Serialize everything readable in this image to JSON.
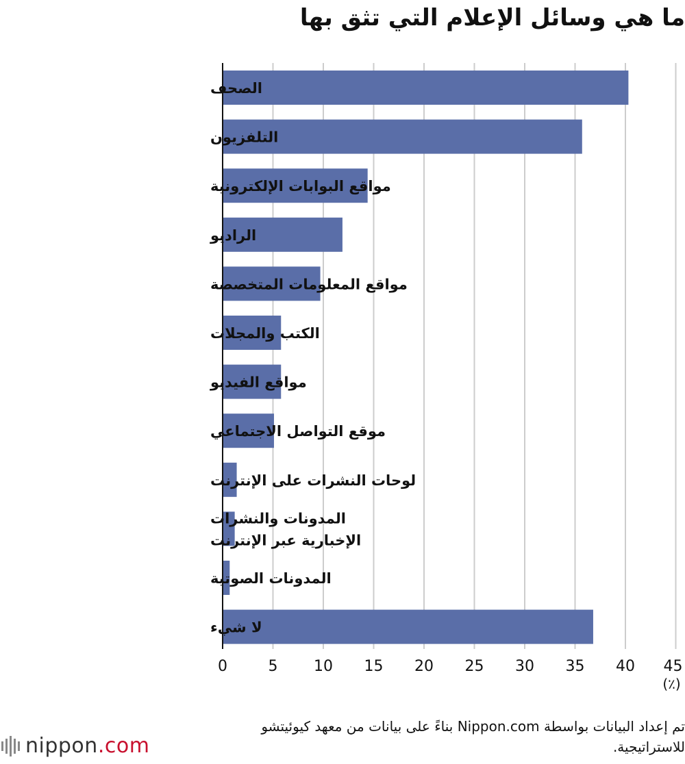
{
  "title": "ما هي وسائل الإعلام التي تثق بها",
  "chart_data": {
    "type": "bar",
    "orientation": "horizontal",
    "title": "ما هي وسائل الإعلام التي تثق بها",
    "categories": [
      [
        "الصحف"
      ],
      [
        "التلفزيون"
      ],
      [
        "مواقع البوابات الإلكترونية"
      ],
      [
        "الراديو"
      ],
      [
        "مواقع المعلومات المتخصصة"
      ],
      [
        "الكتب والمجلات"
      ],
      [
        "مواقع الفيديو"
      ],
      [
        "موقع التواصل الاجتماعي"
      ],
      [
        "لوحات النشرات على الإنترنت"
      ],
      [
        "المدونات والنشرات",
        "الإخبارية عبر الإنترنت"
      ],
      [
        "المدونات الصوتية"
      ],
      [
        "لا شيء"
      ]
    ],
    "values": [
      40.3,
      35.7,
      14.4,
      11.9,
      9.7,
      5.8,
      5.8,
      5.1,
      1.4,
      1.2,
      0.7,
      36.8
    ],
    "xlim": [
      0,
      45
    ],
    "xticks": [
      0,
      5,
      10,
      15,
      20,
      25,
      30,
      35,
      40,
      45
    ],
    "unit_label": "(٪)",
    "bar_color": "#5a6ea8",
    "grid": true
  },
  "footer": {
    "source": "تم إعداد البيانات بواسطة Nippon.com بناءً على بيانات من معهد كيوئيتشو للاستراتيجية."
  },
  "logo": {
    "name": "nippon",
    "suffix": ".com",
    "accent": "#c8102e"
  }
}
